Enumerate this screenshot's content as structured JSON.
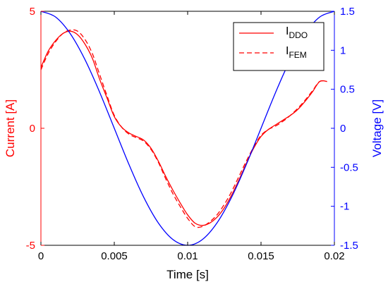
{
  "chart_data": {
    "type": "line",
    "x_axis": {
      "label": "Time [s]",
      "lim": [
        0,
        0.02
      ],
      "ticks": [
        0,
        0.005,
        0.01,
        0.015,
        0.02
      ],
      "tick_labels": [
        "0",
        "0.005",
        "0.01",
        "0.015",
        "0.02"
      ],
      "color": "#000000"
    },
    "y_left": {
      "label": "Current [A]",
      "lim": [
        -5,
        5
      ],
      "ticks": [
        -5,
        0,
        5
      ],
      "tick_labels": [
        "-5",
        "0",
        "5"
      ],
      "color": "#ff0000"
    },
    "y_right": {
      "label": "Voltage [V]",
      "lim": [
        -1.5,
        1.5
      ],
      "ticks": [
        -1.5,
        -1,
        -0.5,
        0,
        0.5,
        1,
        1.5
      ],
      "tick_labels": [
        "-1.5",
        "-1",
        "-0.5",
        "0",
        "0.5",
        "1",
        "1.5"
      ],
      "color": "#0000ff"
    },
    "grid": false,
    "legend_position": "top-right",
    "series": [
      {
        "name": "I",
        "name_subscript": "DDO",
        "axis": "left",
        "color": "#ff0000",
        "style": "solid",
        "x": [
          0,
          0.0005,
          0.001,
          0.0015,
          0.002,
          0.0025,
          0.003,
          0.0035,
          0.004,
          0.0045,
          0.005,
          0.0055,
          0.006,
          0.0065,
          0.007,
          0.0075,
          0.008,
          0.0085,
          0.009,
          0.0095,
          0.01,
          0.0105,
          0.011,
          0.0115,
          0.012,
          0.0125,
          0.013,
          0.0135,
          0.014,
          0.0145,
          0.015,
          0.0155,
          0.016,
          0.0165,
          0.017,
          0.0175,
          0.018,
          0.0185,
          0.019,
          0.0195
        ],
        "y": [
          2.6,
          3.3,
          3.75,
          4.05,
          4.15,
          4.0,
          3.6,
          3.0,
          2.1,
          1.3,
          0.5,
          0.05,
          -0.2,
          -0.35,
          -0.5,
          -0.85,
          -1.4,
          -2.05,
          -2.65,
          -3.2,
          -3.7,
          -4.05,
          -4.15,
          -4.05,
          -3.8,
          -3.4,
          -2.85,
          -2.2,
          -1.5,
          -0.85,
          -0.35,
          -0.05,
          0.15,
          0.35,
          0.55,
          0.8,
          1.15,
          1.55,
          2.0,
          2.0
        ]
      },
      {
        "name": "I",
        "name_subscript": "FEM",
        "axis": "left",
        "color": "#ff0000",
        "style": "dashed",
        "x": [
          0,
          0.0005,
          0.001,
          0.0015,
          0.002,
          0.0025,
          0.003,
          0.0035,
          0.004,
          0.0045,
          0.005,
          0.0055,
          0.006,
          0.0065,
          0.007,
          0.0075,
          0.008,
          0.0085,
          0.009,
          0.0095,
          0.01,
          0.0105,
          0.011,
          0.0115,
          0.012,
          0.0125,
          0.013,
          0.0135,
          0.014,
          0.0145,
          0.015,
          0.0155,
          0.016,
          0.0165,
          0.017,
          0.0175,
          0.018,
          0.0185,
          0.019,
          0.0195
        ],
        "y": [
          2.5,
          3.2,
          3.7,
          4.05,
          4.2,
          4.15,
          3.8,
          3.2,
          2.3,
          1.4,
          0.55,
          0.05,
          -0.25,
          -0.4,
          -0.55,
          -0.9,
          -1.45,
          -2.15,
          -2.8,
          -3.35,
          -3.85,
          -4.2,
          -4.2,
          -4.0,
          -3.7,
          -3.25,
          -2.7,
          -2.05,
          -1.4,
          -0.8,
          -0.3,
          -0.05,
          0.1,
          0.3,
          0.55,
          0.85,
          1.2,
          1.6,
          2.0,
          2.0
        ]
      },
      {
        "name": "",
        "axis": "right",
        "color": "#0000ff",
        "style": "solid",
        "x": [
          0,
          0.001,
          0.002,
          0.003,
          0.004,
          0.005,
          0.006,
          0.007,
          0.008,
          0.009,
          0.01,
          0.011,
          0.012,
          0.013,
          0.014,
          0.015,
          0.016,
          0.017,
          0.018,
          0.019,
          0.02
        ],
        "y": [
          1.5,
          1.4266,
          1.2135,
          0.8817,
          0.4635,
          0,
          -0.4635,
          -0.8817,
          -1.2135,
          -1.4266,
          -1.5,
          -1.4266,
          -1.2135,
          -0.8817,
          -0.4635,
          0,
          0.4635,
          0.8817,
          1.2135,
          1.4266,
          1.5
        ]
      }
    ]
  }
}
